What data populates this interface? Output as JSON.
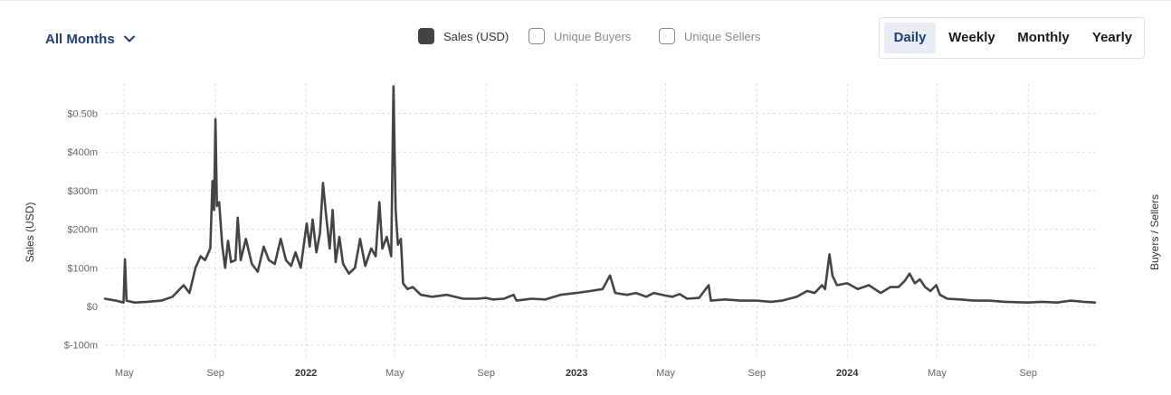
{
  "controls": {
    "month_filter": "All Months",
    "chevron_icon": "chevron-down-icon",
    "legend": [
      {
        "label": "Sales (USD)",
        "checked": true
      },
      {
        "label": "Unique Buyers",
        "checked": false
      },
      {
        "label": "Unique Sellers",
        "checked": false
      }
    ],
    "periods": [
      {
        "label": "Daily",
        "active": true
      },
      {
        "label": "Weekly",
        "active": false
      },
      {
        "label": "Monthly",
        "active": false
      },
      {
        "label": "Yearly",
        "active": false
      }
    ]
  },
  "colors": {
    "line": "#444444",
    "accent": "#1f3f73",
    "grid": "#dddddd",
    "active_bg": "#e8edf5"
  },
  "chart_data": {
    "type": "line",
    "title": "",
    "ylabel": "Sales (USD)",
    "y2label": "Buyers / Sellers",
    "ylim": [
      -100,
      500
    ],
    "ytick_values": [
      -100,
      0,
      100,
      200,
      300,
      400,
      500
    ],
    "ytick_labels": [
      "$-100m",
      "$0",
      "$100m",
      "$200m",
      "$300m",
      "$400m",
      "$0.50b"
    ],
    "xlim": [
      "2021-04-05",
      "2024-11-30"
    ],
    "xtick_dates": [
      "2021-05-01",
      "2021-09-01",
      "2022-01-01",
      "2022-05-01",
      "2022-09-01",
      "2023-01-01",
      "2023-05-01",
      "2023-09-01",
      "2024-01-01",
      "2024-05-01",
      "2024-09-01"
    ],
    "xtick_labels": [
      "May",
      "Sep",
      "2022",
      "May",
      "Sep",
      "2023",
      "May",
      "Sep",
      "2024",
      "May",
      "Sep"
    ],
    "xtick_bold": [
      false,
      false,
      true,
      false,
      false,
      true,
      false,
      false,
      true,
      false,
      false
    ],
    "grid": true,
    "series": [
      {
        "name": "Sales (USD)",
        "points": [
          [
            "2021-04-05",
            20
          ],
          [
            "2021-04-20",
            15
          ],
          [
            "2021-04-30",
            10
          ],
          [
            "2021-05-02",
            122
          ],
          [
            "2021-05-04",
            15
          ],
          [
            "2021-05-15",
            10
          ],
          [
            "2021-06-01",
            12
          ],
          [
            "2021-06-20",
            15
          ],
          [
            "2021-07-05",
            25
          ],
          [
            "2021-07-20",
            55
          ],
          [
            "2021-07-28",
            35
          ],
          [
            "2021-08-05",
            100
          ],
          [
            "2021-08-12",
            130
          ],
          [
            "2021-08-18",
            120
          ],
          [
            "2021-08-25",
            150
          ],
          [
            "2021-08-28",
            325
          ],
          [
            "2021-08-30",
            250
          ],
          [
            "2021-09-01",
            485
          ],
          [
            "2021-09-03",
            260
          ],
          [
            "2021-09-06",
            270
          ],
          [
            "2021-09-10",
            160
          ],
          [
            "2021-09-14",
            100
          ],
          [
            "2021-09-18",
            170
          ],
          [
            "2021-09-22",
            115
          ],
          [
            "2021-09-28",
            120
          ],
          [
            "2021-10-01",
            230
          ],
          [
            "2021-10-05",
            120
          ],
          [
            "2021-10-12",
            175
          ],
          [
            "2021-10-20",
            110
          ],
          [
            "2021-10-28",
            90
          ],
          [
            "2021-11-05",
            155
          ],
          [
            "2021-11-12",
            120
          ],
          [
            "2021-11-20",
            110
          ],
          [
            "2021-11-28",
            175
          ],
          [
            "2021-12-05",
            120
          ],
          [
            "2021-12-12",
            105
          ],
          [
            "2021-12-18",
            140
          ],
          [
            "2021-12-25",
            100
          ],
          [
            "2022-01-02",
            215
          ],
          [
            "2022-01-06",
            155
          ],
          [
            "2022-01-10",
            225
          ],
          [
            "2022-01-15",
            140
          ],
          [
            "2022-01-20",
            190
          ],
          [
            "2022-01-24",
            320
          ],
          [
            "2022-01-28",
            240
          ],
          [
            "2022-02-02",
            150
          ],
          [
            "2022-02-06",
            250
          ],
          [
            "2022-02-10",
            115
          ],
          [
            "2022-02-15",
            180
          ],
          [
            "2022-02-20",
            110
          ],
          [
            "2022-02-28",
            85
          ],
          [
            "2022-03-08",
            100
          ],
          [
            "2022-03-15",
            175
          ],
          [
            "2022-03-22",
            105
          ],
          [
            "2022-03-30",
            150
          ],
          [
            "2022-04-05",
            130
          ],
          [
            "2022-04-10",
            270
          ],
          [
            "2022-04-14",
            150
          ],
          [
            "2022-04-20",
            180
          ],
          [
            "2022-04-26",
            130
          ],
          [
            "2022-04-29",
            570
          ],
          [
            "2022-05-02",
            250
          ],
          [
            "2022-05-05",
            160
          ],
          [
            "2022-05-09",
            175
          ],
          [
            "2022-05-12",
            60
          ],
          [
            "2022-05-18",
            45
          ],
          [
            "2022-05-25",
            50
          ],
          [
            "2022-06-05",
            30
          ],
          [
            "2022-06-20",
            25
          ],
          [
            "2022-07-10",
            30
          ],
          [
            "2022-08-01",
            20
          ],
          [
            "2022-08-20",
            20
          ],
          [
            "2022-09-01",
            22
          ],
          [
            "2022-09-10",
            18
          ],
          [
            "2022-09-25",
            20
          ],
          [
            "2022-10-08",
            30
          ],
          [
            "2022-10-12",
            15
          ],
          [
            "2022-11-01",
            20
          ],
          [
            "2022-11-20",
            18
          ],
          [
            "2022-12-10",
            30
          ],
          [
            "2023-01-01",
            35
          ],
          [
            "2023-01-20",
            40
          ],
          [
            "2023-02-05",
            45
          ],
          [
            "2023-02-15",
            80
          ],
          [
            "2023-02-22",
            35
          ],
          [
            "2023-03-10",
            30
          ],
          [
            "2023-03-22",
            35
          ],
          [
            "2023-04-05",
            25
          ],
          [
            "2023-04-15",
            35
          ],
          [
            "2023-05-01",
            28
          ],
          [
            "2023-05-10",
            25
          ],
          [
            "2023-05-20",
            32
          ],
          [
            "2023-05-30",
            20
          ],
          [
            "2023-06-15",
            22
          ],
          [
            "2023-06-28",
            55
          ],
          [
            "2023-07-01",
            15
          ],
          [
            "2023-07-20",
            18
          ],
          [
            "2023-08-10",
            15
          ],
          [
            "2023-09-01",
            15
          ],
          [
            "2023-09-20",
            12
          ],
          [
            "2023-10-05",
            15
          ],
          [
            "2023-10-25",
            25
          ],
          [
            "2023-11-08",
            40
          ],
          [
            "2023-11-18",
            35
          ],
          [
            "2023-11-28",
            55
          ],
          [
            "2023-12-02",
            45
          ],
          [
            "2023-12-08",
            135
          ],
          [
            "2023-12-12",
            80
          ],
          [
            "2023-12-18",
            55
          ],
          [
            "2024-01-01",
            60
          ],
          [
            "2024-01-15",
            45
          ],
          [
            "2024-01-30",
            55
          ],
          [
            "2024-02-15",
            35
          ],
          [
            "2024-02-28",
            50
          ],
          [
            "2024-03-10",
            50
          ],
          [
            "2024-03-18",
            65
          ],
          [
            "2024-03-25",
            85
          ],
          [
            "2024-04-01",
            60
          ],
          [
            "2024-04-08",
            70
          ],
          [
            "2024-04-15",
            50
          ],
          [
            "2024-04-22",
            40
          ],
          [
            "2024-04-30",
            55
          ],
          [
            "2024-05-05",
            30
          ],
          [
            "2024-05-15",
            20
          ],
          [
            "2024-06-01",
            18
          ],
          [
            "2024-06-20",
            15
          ],
          [
            "2024-07-10",
            15
          ],
          [
            "2024-08-01",
            12
          ],
          [
            "2024-09-01",
            10
          ],
          [
            "2024-09-20",
            12
          ],
          [
            "2024-10-10",
            10
          ],
          [
            "2024-10-28",
            15
          ],
          [
            "2024-11-15",
            12
          ],
          [
            "2024-11-30",
            10
          ]
        ]
      }
    ]
  }
}
